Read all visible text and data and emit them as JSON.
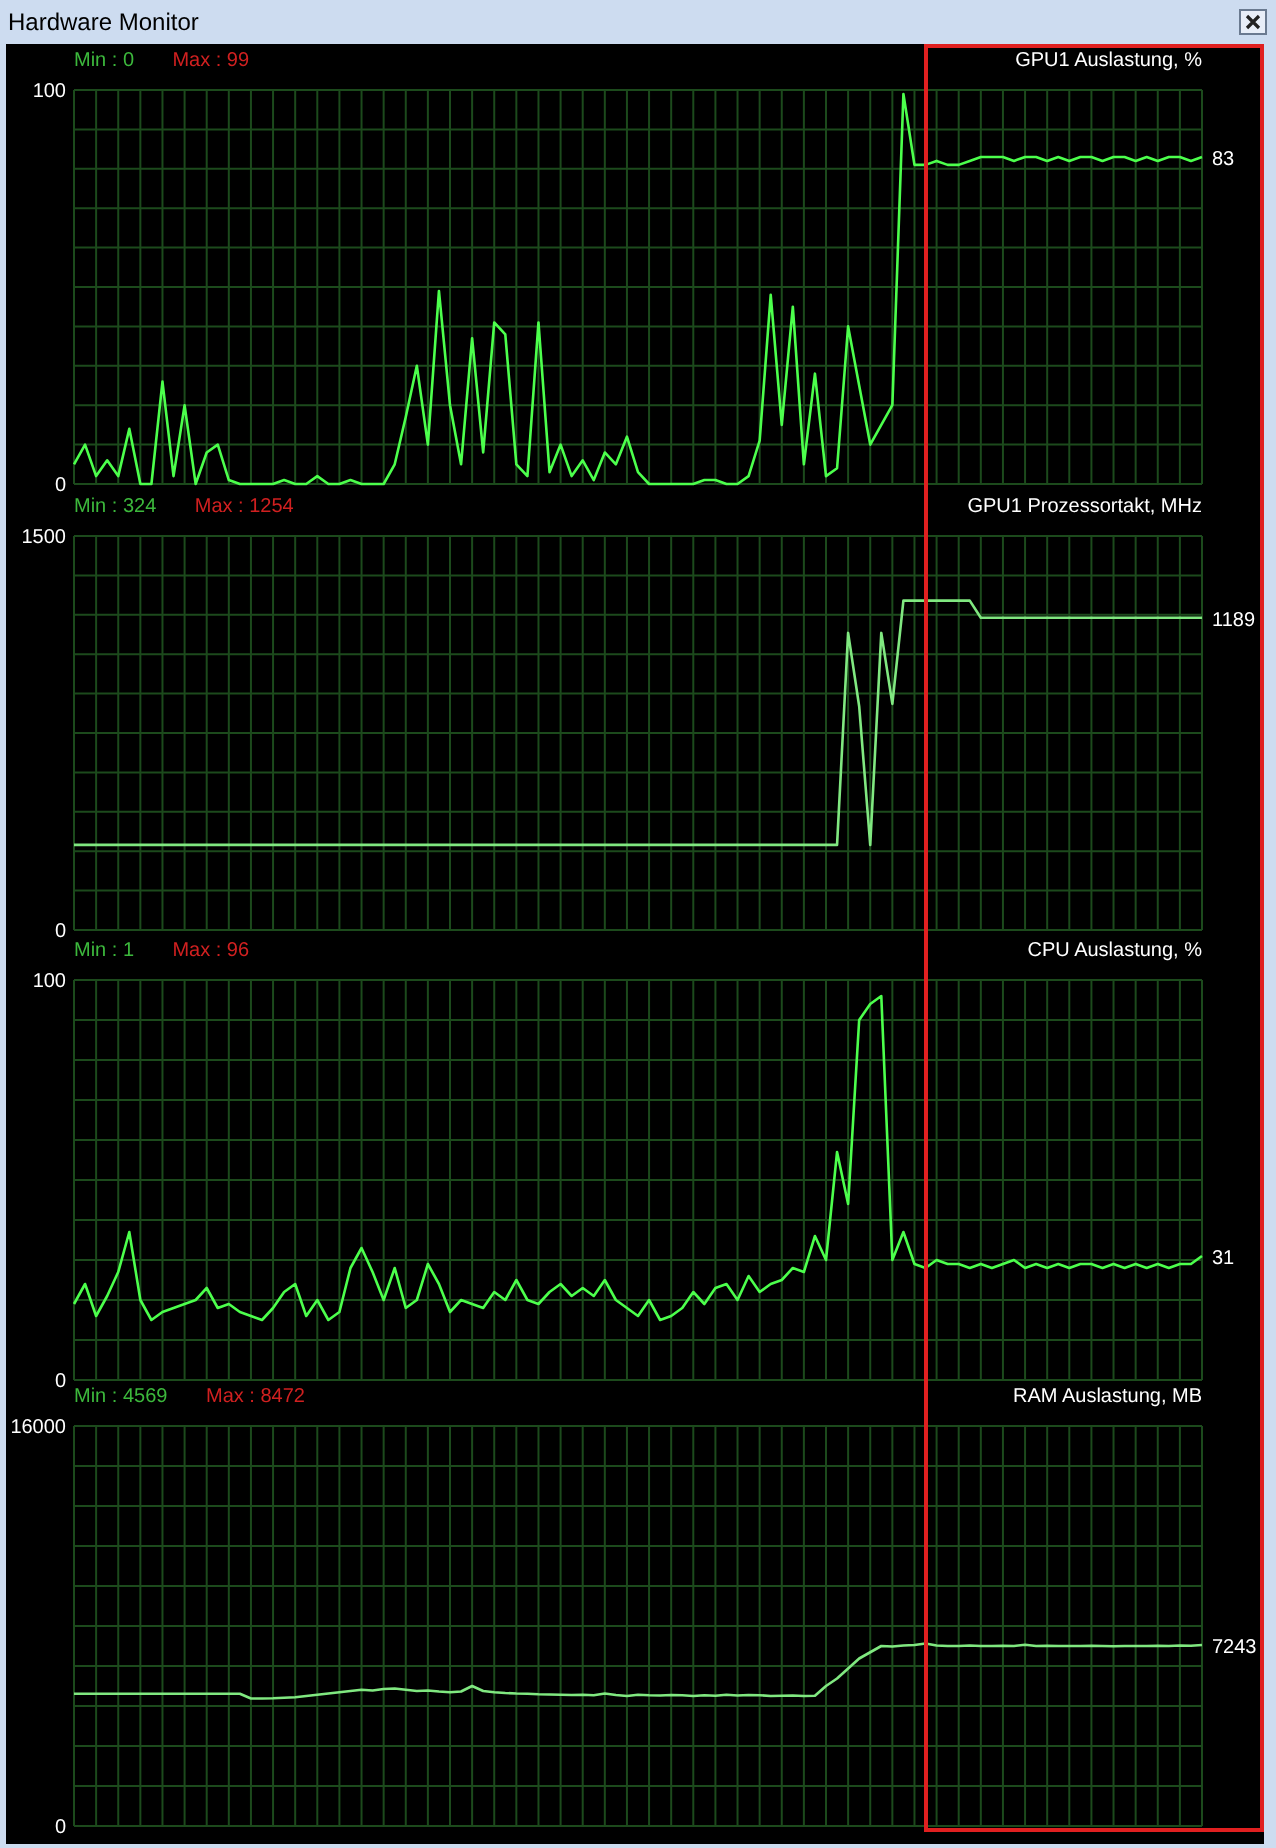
{
  "chart_data": [
    {
      "type": "other",
      "title": "Hardware Monitor"
    },
    {
      "type": "line",
      "title": "GPU1 Auslastung, %",
      "annotations": [
        "Min : 0",
        "Max : 99"
      ],
      "grid": true,
      "ylim": [
        0,
        100
      ],
      "yticks": [
        0,
        {
          "value": 10,
          "label": null
        },
        {
          "value": 20,
          "label": null
        },
        {
          "value": 30,
          "label": null
        },
        {
          "value": 40,
          "label": null
        },
        {
          "value": 50,
          "label": null
        },
        {
          "value": 60,
          "label": null
        },
        {
          "value": 70,
          "label": null
        },
        {
          "value": 80,
          "label": null
        },
        {
          "value": 90,
          "label": null
        },
        100
      ],
      "categories": [
        null,
        null,
        null,
        null,
        null,
        null,
        null,
        null,
        null,
        null,
        null,
        null,
        null,
        null,
        null,
        null,
        null,
        null,
        null,
        null,
        null,
        null,
        null,
        null,
        null,
        null,
        null,
        null,
        null,
        null,
        null,
        null,
        null,
        null,
        null,
        null,
        null,
        null,
        null,
        null,
        null,
        null,
        null,
        null,
        null,
        null,
        null,
        null,
        null,
        null,
        null,
        null,
        null,
        null,
        null,
        null,
        null,
        null,
        null,
        null,
        null,
        null,
        null,
        null,
        null,
        null,
        null,
        null,
        null,
        null,
        null,
        null,
        null,
        null,
        null,
        null,
        null,
        null,
        null,
        null,
        null,
        null,
        null,
        null,
        null,
        null,
        null,
        null,
        null,
        null,
        null,
        null,
        null,
        null,
        null,
        null,
        null,
        null,
        null,
        null,
        null,
        null,
        null
      ],
      "series": [
        {
          "color": "#4cff4c",
          "values": [
            5,
            10,
            2,
            6,
            2,
            14,
            0,
            0,
            26,
            2,
            20,
            0,
            8,
            10,
            1,
            0,
            0,
            0,
            0,
            1,
            0,
            0,
            2,
            0,
            0,
            1,
            0,
            0,
            0,
            5,
            17,
            30,
            10,
            49,
            20,
            5,
            37,
            8,
            41,
            38,
            5,
            2,
            41,
            3,
            10,
            2,
            6,
            1,
            8,
            5,
            12,
            3,
            0,
            0,
            0,
            0,
            0,
            1,
            1,
            0,
            0,
            2,
            11,
            48,
            15,
            45,
            5,
            28,
            2,
            4,
            40,
            25,
            10,
            15,
            20,
            99,
            81,
            81,
            82,
            81,
            81,
            82,
            83,
            83,
            83,
            82,
            83,
            83,
            82,
            83,
            82,
            83,
            83,
            82,
            83,
            83,
            82,
            83,
            82,
            83,
            83,
            82,
            83
          ],
          "value_labels": [
            null,
            null,
            null,
            null,
            null,
            null,
            null,
            null,
            null,
            null,
            null,
            null,
            null,
            null,
            null,
            null,
            null,
            null,
            null,
            null,
            null,
            null,
            null,
            null,
            null,
            null,
            null,
            null,
            null,
            null,
            null,
            null,
            null,
            null,
            null,
            null,
            null,
            null,
            null,
            null,
            null,
            null,
            null,
            null,
            null,
            null,
            null,
            null,
            null,
            null,
            null,
            null,
            null,
            null,
            null,
            null,
            null,
            null,
            null,
            null,
            null,
            null,
            null,
            null,
            null,
            null,
            null,
            null,
            null,
            null,
            null,
            null,
            null,
            null,
            null,
            null,
            null,
            null,
            null,
            null,
            null,
            null,
            null,
            null,
            null,
            null,
            null,
            null,
            null,
            null,
            null,
            null,
            null,
            null,
            null,
            null,
            null,
            null,
            null,
            null,
            null,
            null,
            "83"
          ]
        }
      ]
    },
    {
      "type": "line",
      "title": "GPU1 Prozessortakt, MHz",
      "annotations": [
        "Min : 324",
        "Max : 1254"
      ],
      "grid": true,
      "ylim": [
        0,
        1500
      ],
      "yticks": [
        0,
        {
          "value": 150,
          "label": null
        },
        {
          "value": 300,
          "label": null
        },
        {
          "value": 450,
          "label": null
        },
        {
          "value": 600,
          "label": null
        },
        {
          "value": 750,
          "label": null
        },
        {
          "value": 900,
          "label": null
        },
        {
          "value": 1050,
          "label": null
        },
        {
          "value": 1200,
          "label": null
        },
        {
          "value": 1350,
          "label": null
        },
        1500
      ],
      "categories": [
        null,
        null,
        null,
        null,
        null,
        null,
        null,
        null,
        null,
        null,
        null,
        null,
        null,
        null,
        null,
        null,
        null,
        null,
        null,
        null,
        null,
        null,
        null,
        null,
        null,
        null,
        null,
        null,
        null,
        null,
        null,
        null,
        null,
        null,
        null,
        null,
        null,
        null,
        null,
        null,
        null,
        null,
        null,
        null,
        null,
        null,
        null,
        null,
        null,
        null,
        null,
        null,
        null,
        null,
        null,
        null,
        null,
        null,
        null,
        null,
        null,
        null,
        null,
        null,
        null,
        null,
        null,
        null,
        null,
        null,
        null,
        null,
        null,
        null,
        null,
        null,
        null,
        null,
        null,
        null,
        null,
        null,
        null,
        null,
        null,
        null,
        null,
        null,
        null,
        null,
        null,
        null,
        null,
        null,
        null,
        null,
        null,
        null,
        null,
        null,
        null,
        null,
        null
      ],
      "series": [
        {
          "color": "#80e880",
          "values": [
            324,
            324,
            324,
            324,
            324,
            324,
            324,
            324,
            324,
            324,
            324,
            324,
            324,
            324,
            324,
            324,
            324,
            324,
            324,
            324,
            324,
            324,
            324,
            324,
            324,
            324,
            324,
            324,
            324,
            324,
            324,
            324,
            324,
            324,
            324,
            324,
            324,
            324,
            324,
            324,
            324,
            324,
            324,
            324,
            324,
            324,
            324,
            324,
            324,
            324,
            324,
            324,
            324,
            324,
            324,
            324,
            324,
            324,
            324,
            324,
            324,
            324,
            324,
            324,
            324,
            324,
            324,
            324,
            324,
            324,
            1131,
            852,
            324,
            1131,
            861,
            1254,
            1254,
            1254,
            1254,
            1254,
            1254,
            1254,
            1189,
            1189,
            1189,
            1189,
            1189,
            1189,
            1189,
            1189,
            1189,
            1189,
            1189,
            1189,
            1189,
            1189,
            1189,
            1189,
            1189,
            1189,
            1189,
            1189,
            1189
          ],
          "value_labels": [
            null,
            null,
            null,
            null,
            null,
            null,
            null,
            null,
            null,
            null,
            null,
            null,
            null,
            null,
            null,
            null,
            null,
            null,
            null,
            null,
            null,
            null,
            null,
            null,
            null,
            null,
            null,
            null,
            null,
            null,
            null,
            null,
            null,
            null,
            null,
            null,
            null,
            null,
            null,
            null,
            null,
            null,
            null,
            null,
            null,
            null,
            null,
            null,
            null,
            null,
            null,
            null,
            null,
            null,
            null,
            null,
            null,
            null,
            null,
            null,
            null,
            null,
            null,
            null,
            null,
            null,
            null,
            null,
            null,
            null,
            null,
            null,
            null,
            null,
            null,
            null,
            null,
            null,
            null,
            null,
            null,
            null,
            null,
            null,
            null,
            null,
            null,
            null,
            null,
            null,
            null,
            null,
            null,
            null,
            null,
            null,
            null,
            null,
            null,
            null,
            null,
            null,
            "1189"
          ]
        }
      ]
    },
    {
      "type": "line",
      "title": "CPU Auslastung, %",
      "annotations": [
        "Min : 1",
        "Max : 96"
      ],
      "grid": true,
      "ylim": [
        0,
        100
      ],
      "yticks": [
        0,
        {
          "value": 10,
          "label": null
        },
        {
          "value": 20,
          "label": null
        },
        {
          "value": 30,
          "label": null
        },
        {
          "value": 40,
          "label": null
        },
        {
          "value": 50,
          "label": null
        },
        {
          "value": 60,
          "label": null
        },
        {
          "value": 70,
          "label": null
        },
        {
          "value": 80,
          "label": null
        },
        {
          "value": 90,
          "label": null
        },
        100
      ],
      "categories": [
        null,
        null,
        null,
        null,
        null,
        null,
        null,
        null,
        null,
        null,
        null,
        null,
        null,
        null,
        null,
        null,
        null,
        null,
        null,
        null,
        null,
        null,
        null,
        null,
        null,
        null,
        null,
        null,
        null,
        null,
        null,
        null,
        null,
        null,
        null,
        null,
        null,
        null,
        null,
        null,
        null,
        null,
        null,
        null,
        null,
        null,
        null,
        null,
        null,
        null,
        null,
        null,
        null,
        null,
        null,
        null,
        null,
        null,
        null,
        null,
        null,
        null,
        null,
        null,
        null,
        null,
        null,
        null,
        null,
        null,
        null,
        null,
        null,
        null,
        null,
        null,
        null,
        null,
        null,
        null,
        null,
        null,
        null,
        null,
        null,
        null,
        null,
        null,
        null,
        null,
        null,
        null,
        null,
        null,
        null,
        null,
        null,
        null,
        null,
        null,
        null,
        null,
        null
      ],
      "series": [
        {
          "color": "#4cff4c",
          "values": [
            19,
            24,
            16,
            21,
            27,
            37,
            20,
            15,
            17,
            18,
            19,
            20,
            23,
            18,
            19,
            17,
            16,
            15,
            18,
            22,
            24,
            16,
            20,
            15,
            17,
            28,
            33,
            27,
            20,
            28,
            18,
            20,
            29,
            24,
            17,
            20,
            19,
            18,
            22,
            20,
            25,
            20,
            19,
            22,
            24,
            21,
            23,
            21,
            25,
            20,
            18,
            16,
            20,
            15,
            16,
            18,
            22,
            19,
            23,
            24,
            20,
            26,
            22,
            24,
            25,
            28,
            27,
            36,
            30,
            57,
            44,
            90,
            94,
            96,
            30,
            37,
            29,
            28,
            30,
            29,
            29,
            28,
            29,
            28,
            29,
            30,
            28,
            29,
            28,
            29,
            28,
            29,
            29,
            28,
            29,
            28,
            29,
            28,
            29,
            28,
            29,
            29,
            31
          ],
          "value_labels": [
            null,
            null,
            null,
            null,
            null,
            null,
            null,
            null,
            null,
            null,
            null,
            null,
            null,
            null,
            null,
            null,
            null,
            null,
            null,
            null,
            null,
            null,
            null,
            null,
            null,
            null,
            null,
            null,
            null,
            null,
            null,
            null,
            null,
            null,
            null,
            null,
            null,
            null,
            null,
            null,
            null,
            null,
            null,
            null,
            null,
            null,
            null,
            null,
            null,
            null,
            null,
            null,
            null,
            null,
            null,
            null,
            null,
            null,
            null,
            null,
            null,
            null,
            null,
            null,
            null,
            null,
            null,
            null,
            null,
            null,
            null,
            null,
            null,
            null,
            null,
            null,
            null,
            null,
            null,
            null,
            null,
            null,
            null,
            null,
            null,
            null,
            null,
            null,
            null,
            null,
            null,
            null,
            null,
            null,
            null,
            null,
            null,
            null,
            null,
            null,
            null,
            null,
            "31"
          ]
        }
      ]
    },
    {
      "type": "line",
      "title": "RAM Auslastung, MB",
      "annotations": [
        "Min : 4569",
        "Max : 8472"
      ],
      "grid": true,
      "ylim": [
        0,
        16000
      ],
      "yticks": [
        0,
        {
          "value": 1600,
          "label": null
        },
        {
          "value": 3200,
          "label": null
        },
        {
          "value": 4800,
          "label": null
        },
        {
          "value": 6400,
          "label": null
        },
        {
          "value": 8000,
          "label": null
        },
        {
          "value": 9600,
          "label": null
        },
        {
          "value": 11200,
          "label": null
        },
        {
          "value": 12800,
          "label": null
        },
        {
          "value": 14400,
          "label": null
        },
        16000
      ],
      "categories": [
        null,
        null,
        null,
        null,
        null,
        null,
        null,
        null,
        null,
        null,
        null,
        null,
        null,
        null,
        null,
        null,
        null,
        null,
        null,
        null,
        null,
        null,
        null,
        null,
        null,
        null,
        null,
        null,
        null,
        null,
        null,
        null,
        null,
        null,
        null,
        null,
        null,
        null,
        null,
        null,
        null,
        null,
        null,
        null,
        null,
        null,
        null,
        null,
        null,
        null,
        null,
        null,
        null,
        null,
        null,
        null,
        null,
        null,
        null,
        null,
        null,
        null,
        null,
        null,
        null,
        null,
        null,
        null,
        null,
        null,
        null,
        null,
        null,
        null,
        null,
        null,
        null,
        null,
        null,
        null,
        null,
        null,
        null,
        null,
        null,
        null,
        null,
        null,
        null,
        null,
        null,
        null,
        null,
        null,
        null,
        null,
        null,
        null,
        null,
        null,
        null,
        null,
        null
      ],
      "series": [
        {
          "color": "#80e880",
          "values": [
            5290,
            5290,
            5290,
            5290,
            5290,
            5290,
            5290,
            5290,
            5290,
            5290,
            5290,
            5290,
            5290,
            5290,
            5290,
            5290,
            5100,
            5100,
            5110,
            5130,
            5150,
            5200,
            5250,
            5300,
            5350,
            5400,
            5450,
            5420,
            5480,
            5500,
            5450,
            5400,
            5420,
            5380,
            5350,
            5380,
            5600,
            5400,
            5350,
            5320,
            5300,
            5290,
            5270,
            5260,
            5250,
            5240,
            5250,
            5230,
            5300,
            5240,
            5200,
            5250,
            5230,
            5220,
            5240,
            5230,
            5200,
            5230,
            5210,
            5250,
            5220,
            5240,
            5230,
            5200,
            5210,
            5220,
            5200,
            5210,
            5600,
            5900,
            6300,
            6700,
            6950,
            7200,
            7180,
            7220,
            7240,
            7300,
            7220,
            7200,
            7200,
            7220,
            7200,
            7200,
            7210,
            7200,
            7250,
            7200,
            7210,
            7200,
            7200,
            7200,
            7210,
            7200,
            7190,
            7200,
            7200,
            7200,
            7210,
            7200,
            7220,
            7210,
            7243
          ],
          "value_labels": [
            null,
            null,
            null,
            null,
            null,
            null,
            null,
            null,
            null,
            null,
            null,
            null,
            null,
            null,
            null,
            null,
            null,
            null,
            null,
            null,
            null,
            null,
            null,
            null,
            null,
            null,
            null,
            null,
            null,
            null,
            null,
            null,
            null,
            null,
            null,
            null,
            null,
            null,
            null,
            null,
            null,
            null,
            null,
            null,
            null,
            null,
            null,
            null,
            null,
            null,
            null,
            null,
            null,
            null,
            null,
            null,
            null,
            null,
            null,
            null,
            null,
            null,
            null,
            null,
            null,
            null,
            null,
            null,
            null,
            null,
            null,
            null,
            null,
            null,
            null,
            null,
            null,
            null,
            null,
            null,
            null,
            null,
            null,
            null,
            null,
            null,
            null,
            null,
            null,
            null,
            null,
            null,
            null,
            null,
            null,
            null,
            null,
            null,
            null,
            null,
            null,
            null,
            "7243"
          ]
        }
      ]
    }
  ]
}
